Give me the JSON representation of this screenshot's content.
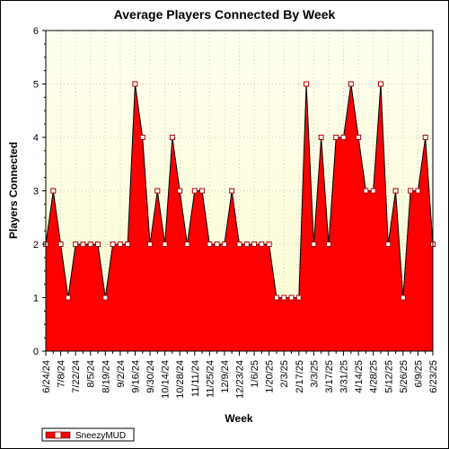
{
  "chart_data": {
    "type": "area",
    "title": "Average Players Connected By Week",
    "xlabel": "Week",
    "ylabel": "Players Connected",
    "ylim": [
      0,
      6
    ],
    "yticks": [
      0,
      1,
      2,
      3,
      4,
      5,
      6
    ],
    "grid": "dotted, horizontal and vertical",
    "legend_position": "bottom-left",
    "x_tick_labels": [
      "6/24/24",
      "7/8/24",
      "7/22/24",
      "8/5/24",
      "8/19/24",
      "9/2/24",
      "9/16/24",
      "9/30/24",
      "10/14/24",
      "10/28/24",
      "11/11/24",
      "11/25/24",
      "12/9/24",
      "12/23/24",
      "1/6/25",
      "1/20/25",
      "2/3/25",
      "2/17/25",
      "3/3/25",
      "3/17/25",
      "3/31/25",
      "4/14/25",
      "4/28/25",
      "5/12/25",
      "5/26/25",
      "6/9/25",
      "6/23/25"
    ],
    "series": [
      {
        "name": "SneezyMUD",
        "color": "#ff0000",
        "x_start": "6/24/24",
        "x_interval": "1 week",
        "values": [
          2,
          3,
          2,
          1,
          2,
          2,
          2,
          2,
          1,
          2,
          2,
          2,
          5,
          4,
          2,
          3,
          2,
          4,
          3,
          2,
          3,
          3,
          2,
          2,
          2,
          3,
          2,
          2,
          2,
          2,
          2,
          1,
          1,
          1,
          1,
          5,
          2,
          4,
          2,
          4,
          4,
          5,
          4,
          3,
          3,
          5,
          2,
          3,
          1,
          3,
          3,
          4,
          2
        ]
      }
    ]
  },
  "colors": {
    "plot_background_top": "#fffff0",
    "plot_background_bottom": "#fbfbd0",
    "area_fill": "#ff0000",
    "area_outline": "#000000",
    "marker_fill": "#ffffff",
    "marker_stroke": "#b00000",
    "grid": "#c8c8c8"
  }
}
